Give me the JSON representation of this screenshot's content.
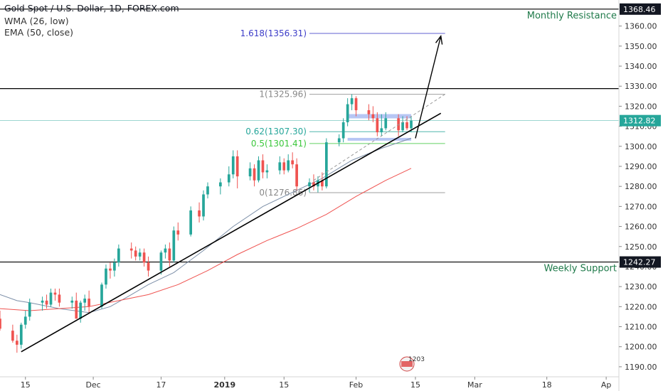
{
  "header": {
    "title": "Gold Spot / U.S. Dollar, 1D, FOREX.com",
    "indicators": [
      "WMA (26, low)",
      "EMA (50, close)"
    ]
  },
  "chart_data": {
    "type": "candlestick",
    "y_axis": {
      "ticks": [
        1190,
        1200,
        1210,
        1220,
        1230,
        1240,
        1250,
        1260,
        1270,
        1280,
        1290,
        1300,
        1310,
        1320,
        1330,
        1340,
        1350,
        1360
      ],
      "tick_labels": [
        "1190.00",
        "1200.00",
        "1210.00",
        "1220.00",
        "1230.00",
        "1240.00",
        "1250.00",
        "1260.00",
        "1270.00",
        "1280.00",
        "1290.00",
        "1300.00",
        "1310.00",
        "1320.00",
        "1330.00",
        "1340.00",
        "1350.00",
        "1360.00"
      ],
      "range": [
        1185,
        1373
      ]
    },
    "x_axis": {
      "labels": [
        {
          "date": "2018-11-15",
          "text": "15"
        },
        {
          "date": "2018-12-01",
          "text": "Dec"
        },
        {
          "date": "2018-12-17",
          "text": "17"
        },
        {
          "date": "2019-01-01",
          "text": "2019"
        },
        {
          "date": "2019-01-15",
          "text": "15"
        },
        {
          "date": "2019-02-01",
          "text": "Feb"
        },
        {
          "date": "2019-02-15",
          "text": "15"
        },
        {
          "date": "2019-03-01",
          "text": "Mar"
        },
        {
          "date": "2019-03-18",
          "text": "18"
        },
        {
          "date": "2019-04-01",
          "text": "Ap"
        }
      ],
      "range": [
        "2018-11-09",
        "2019-04-04"
      ]
    },
    "price_labels": [
      {
        "value": 1368.46,
        "text": "1368.46",
        "style": "dark"
      },
      {
        "value": 1312.82,
        "text": "1312.82",
        "style": "teal"
      },
      {
        "value": 1242.27,
        "text": "1242.27",
        "style": "dark"
      }
    ],
    "horizontal_levels": [
      {
        "value": 1368.46,
        "label": "Monthly Resistance",
        "color": "#000000"
      },
      {
        "value": 1328.8,
        "label": "",
        "color": "#000000"
      },
      {
        "value": 1242.27,
        "label": "Weekly Support",
        "color": "#000000"
      }
    ],
    "fibonacci": [
      {
        "ratio": "1.618",
        "value": 1356.31,
        "text": "1.618(1356.31)",
        "color": "#3c3cc8"
      },
      {
        "ratio": "1",
        "value": 1325.96,
        "text": "1(1325.96)",
        "color": "#888888"
      },
      {
        "ratio": "0.62",
        "value": 1307.3,
        "text": "0.62(1307.30)",
        "color": "#26a69a"
      },
      {
        "ratio": "0.5",
        "value": 1301.41,
        "text": "0.5(1301.41)",
        "color": "#3cc83c"
      },
      {
        "ratio": "0",
        "value": 1276.86,
        "text": "0(1276.86)",
        "color": "#888888"
      }
    ],
    "fib_range": {
      "from": "2019-01-21",
      "to": "2019-02-22"
    },
    "range_box": {
      "from": "2019-01-30",
      "to": "2019-02-14",
      "top": 1315,
      "bottom": 1303.5
    },
    "trendline": {
      "from": {
        "date": "2018-11-14",
        "value": 1197.5
      },
      "to": {
        "date": "2019-02-21",
        "value": 1316.5
      }
    },
    "dashed_line": {
      "from": {
        "date": "2019-01-22",
        "value": 1283
      },
      "to": {
        "date": "2019-02-22",
        "value": 1326
      }
    },
    "arrow": {
      "from": {
        "date": "2019-02-15",
        "value": 1304
      },
      "to": {
        "date": "2019-02-21",
        "value": 1355
      }
    },
    "current_price": 1312.82,
    "candles": [
      {
        "d": "2018-11-09",
        "o": 1214,
        "h": 1218,
        "l": 1208,
        "c": 1209
      },
      {
        "d": "2018-11-12",
        "o": 1208,
        "h": 1211,
        "l": 1202,
        "c": 1203
      },
      {
        "d": "2018-11-13",
        "o": 1203,
        "h": 1206,
        "l": 1197,
        "c": 1201
      },
      {
        "d": "2018-11-14",
        "o": 1201,
        "h": 1212,
        "l": 1199,
        "c": 1211
      },
      {
        "d": "2018-11-15",
        "o": 1211,
        "h": 1218,
        "l": 1209,
        "c": 1215
      },
      {
        "d": "2018-11-16",
        "o": 1215,
        "h": 1224,
        "l": 1213,
        "c": 1222
      },
      {
        "d": "2018-11-19",
        "o": 1222,
        "h": 1225,
        "l": 1218,
        "c": 1223
      },
      {
        "d": "2018-11-20",
        "o": 1223,
        "h": 1226,
        "l": 1219,
        "c": 1221
      },
      {
        "d": "2018-11-21",
        "o": 1221,
        "h": 1229,
        "l": 1220,
        "c": 1227
      },
      {
        "d": "2018-11-22",
        "o": 1227,
        "h": 1229,
        "l": 1223,
        "c": 1226
      },
      {
        "d": "2018-11-23",
        "o": 1226,
        "h": 1229,
        "l": 1220,
        "c": 1222
      },
      {
        "d": "2018-11-26",
        "o": 1222,
        "h": 1225,
        "l": 1219,
        "c": 1223
      },
      {
        "d": "2018-11-27",
        "o": 1223,
        "h": 1227,
        "l": 1214,
        "c": 1214
      },
      {
        "d": "2018-11-28",
        "o": 1214,
        "h": 1223,
        "l": 1212,
        "c": 1222
      },
      {
        "d": "2018-11-29",
        "o": 1222,
        "h": 1226,
        "l": 1218,
        "c": 1224
      },
      {
        "d": "2018-11-30",
        "o": 1224,
        "h": 1228,
        "l": 1217,
        "c": 1220
      },
      {
        "d": "2018-12-03",
        "o": 1220,
        "h": 1232,
        "l": 1219,
        "c": 1231
      },
      {
        "d": "2018-12-04",
        "o": 1231,
        "h": 1241,
        "l": 1229,
        "c": 1239
      },
      {
        "d": "2018-12-05",
        "o": 1239,
        "h": 1242,
        "l": 1234,
        "c": 1238
      },
      {
        "d": "2018-12-06",
        "o": 1238,
        "h": 1244,
        "l": 1235,
        "c": 1242
      },
      {
        "d": "2018-12-07",
        "o": 1242,
        "h": 1251,
        "l": 1240,
        "c": 1249
      },
      {
        "d": "2018-12-10",
        "o": 1249,
        "h": 1252,
        "l": 1244,
        "c": 1248
      },
      {
        "d": "2018-12-11",
        "o": 1248,
        "h": 1250,
        "l": 1243,
        "c": 1245
      },
      {
        "d": "2018-12-12",
        "o": 1245,
        "h": 1249,
        "l": 1243,
        "c": 1247
      },
      {
        "d": "2018-12-13",
        "o": 1247,
        "h": 1249,
        "l": 1240,
        "c": 1242
      },
      {
        "d": "2018-12-14",
        "o": 1242,
        "h": 1245,
        "l": 1235,
        "c": 1238
      },
      {
        "d": "2018-12-17",
        "o": 1238,
        "h": 1248,
        "l": 1236,
        "c": 1247
      },
      {
        "d": "2018-12-18",
        "o": 1247,
        "h": 1251,
        "l": 1244,
        "c": 1249
      },
      {
        "d": "2018-12-19",
        "o": 1249,
        "h": 1252,
        "l": 1240,
        "c": 1243
      },
      {
        "d": "2018-12-20",
        "o": 1243,
        "h": 1260,
        "l": 1242,
        "c": 1258
      },
      {
        "d": "2018-12-21",
        "o": 1258,
        "h": 1262,
        "l": 1253,
        "c": 1256
      },
      {
        "d": "2018-12-24",
        "o": 1256,
        "h": 1270,
        "l": 1255,
        "c": 1268
      },
      {
        "d": "2018-12-26",
        "o": 1268,
        "h": 1272,
        "l": 1262,
        "c": 1265
      },
      {
        "d": "2018-12-27",
        "o": 1265,
        "h": 1278,
        "l": 1263,
        "c": 1276
      },
      {
        "d": "2018-12-28",
        "o": 1276,
        "h": 1282,
        "l": 1274,
        "c": 1280
      },
      {
        "d": "2018-12-31",
        "o": 1280,
        "h": 1284,
        "l": 1276,
        "c": 1282
      },
      {
        "d": "2019-01-02",
        "o": 1282,
        "h": 1290,
        "l": 1280,
        "c": 1286
      },
      {
        "d": "2019-01-03",
        "o": 1286,
        "h": 1298,
        "l": 1284,
        "c": 1295
      },
      {
        "d": "2019-01-04",
        "o": 1295,
        "h": 1298,
        "l": 1279,
        "c": 1285
      },
      {
        "d": "2019-01-07",
        "o": 1285,
        "h": 1292,
        "l": 1283,
        "c": 1289
      },
      {
        "d": "2019-01-08",
        "o": 1289,
        "h": 1291,
        "l": 1280,
        "c": 1283
      },
      {
        "d": "2019-01-09",
        "o": 1283,
        "h": 1295,
        "l": 1282,
        "c": 1293
      },
      {
        "d": "2019-01-10",
        "o": 1293,
        "h": 1296,
        "l": 1284,
        "c": 1287
      },
      {
        "d": "2019-01-11",
        "o": 1287,
        "h": 1291,
        "l": 1284,
        "c": 1288
      },
      {
        "d": "2019-01-14",
        "o": 1288,
        "h": 1295,
        "l": 1286,
        "c": 1292
      },
      {
        "d": "2019-01-15",
        "o": 1292,
        "h": 1294,
        "l": 1286,
        "c": 1288
      },
      {
        "d": "2019-01-16",
        "o": 1288,
        "h": 1296,
        "l": 1287,
        "c": 1293
      },
      {
        "d": "2019-01-17",
        "o": 1293,
        "h": 1297,
        "l": 1289,
        "c": 1291
      },
      {
        "d": "2019-01-18",
        "o": 1291,
        "h": 1294,
        "l": 1278,
        "c": 1280
      },
      {
        "d": "2019-01-21",
        "o": 1280,
        "h": 1284,
        "l": 1277,
        "c": 1282
      },
      {
        "d": "2019-01-22",
        "o": 1282,
        "h": 1286,
        "l": 1278,
        "c": 1280
      },
      {
        "d": "2019-01-23",
        "o": 1280,
        "h": 1285,
        "l": 1277,
        "c": 1283
      },
      {
        "d": "2019-01-24",
        "o": 1283,
        "h": 1287,
        "l": 1278,
        "c": 1280
      },
      {
        "d": "2019-01-25",
        "o": 1280,
        "h": 1304,
        "l": 1279,
        "c": 1302
      },
      {
        "d": "2019-01-28",
        "o": 1302,
        "h": 1306,
        "l": 1300,
        "c": 1304
      },
      {
        "d": "2019-01-29",
        "o": 1304,
        "h": 1314,
        "l": 1302,
        "c": 1312
      },
      {
        "d": "2019-01-30",
        "o": 1312,
        "h": 1324,
        "l": 1310,
        "c": 1321
      },
      {
        "d": "2019-01-31",
        "o": 1321,
        "h": 1326,
        "l": 1318,
        "c": 1324
      },
      {
        "d": "2019-02-01",
        "o": 1324,
        "h": 1325,
        "l": 1315,
        "c": 1318
      },
      {
        "d": "2019-02-04",
        "o": 1318,
        "h": 1321,
        "l": 1313,
        "c": 1316
      },
      {
        "d": "2019-02-05",
        "o": 1316,
        "h": 1320,
        "l": 1312,
        "c": 1314
      },
      {
        "d": "2019-02-06",
        "o": 1314,
        "h": 1317,
        "l": 1305,
        "c": 1307
      },
      {
        "d": "2019-02-07",
        "o": 1307,
        "h": 1316,
        "l": 1305,
        "c": 1309
      },
      {
        "d": "2019-02-08",
        "o": 1309,
        "h": 1317,
        "l": 1308,
        "c": 1314
      },
      {
        "d": "2019-02-11",
        "o": 1314,
        "h": 1316,
        "l": 1305,
        "c": 1308
      },
      {
        "d": "2019-02-12",
        "o": 1308,
        "h": 1315,
        "l": 1307,
        "c": 1312
      },
      {
        "d": "2019-02-13",
        "o": 1312,
        "h": 1315,
        "l": 1308,
        "c": 1309
      },
      {
        "d": "2019-02-14",
        "o": 1309,
        "h": 1315,
        "l": 1307,
        "c": 1312.82
      }
    ],
    "wma_26_low": [
      {
        "d": "2018-11-09",
        "v": 1226
      },
      {
        "d": "2018-11-13",
        "v": 1223
      },
      {
        "d": "2018-11-16",
        "v": 1222
      },
      {
        "d": "2018-11-23",
        "v": 1219
      },
      {
        "d": "2018-11-30",
        "v": 1217
      },
      {
        "d": "2018-12-05",
        "v": 1220
      },
      {
        "d": "2018-12-10",
        "v": 1226
      },
      {
        "d": "2018-12-14",
        "v": 1231
      },
      {
        "d": "2018-12-20",
        "v": 1237
      },
      {
        "d": "2018-12-27",
        "v": 1248
      },
      {
        "d": "2019-01-03",
        "v": 1260
      },
      {
        "d": "2019-01-10",
        "v": 1270
      },
      {
        "d": "2019-01-17",
        "v": 1277
      },
      {
        "d": "2019-01-24",
        "v": 1284
      },
      {
        "d": "2019-01-31",
        "v": 1293
      },
      {
        "d": "2019-02-07",
        "v": 1299
      },
      {
        "d": "2019-02-14",
        "v": 1304
      }
    ],
    "ema_50_close": [
      {
        "d": "2018-11-09",
        "v": 1219
      },
      {
        "d": "2018-11-16",
        "v": 1218
      },
      {
        "d": "2018-11-23",
        "v": 1219
      },
      {
        "d": "2018-11-30",
        "v": 1220
      },
      {
        "d": "2018-12-07",
        "v": 1223
      },
      {
        "d": "2018-12-14",
        "v": 1226
      },
      {
        "d": "2018-12-21",
        "v": 1231
      },
      {
        "d": "2018-12-28",
        "v": 1238
      },
      {
        "d": "2019-01-04",
        "v": 1246
      },
      {
        "d": "2019-01-11",
        "v": 1253
      },
      {
        "d": "2019-01-18",
        "v": 1259
      },
      {
        "d": "2019-01-25",
        "v": 1266
      },
      {
        "d": "2019-02-01",
        "v": 1275
      },
      {
        "d": "2019-02-08",
        "v": 1283
      },
      {
        "d": "2019-02-14",
        "v": 1289
      }
    ],
    "colors": {
      "up": "#26a69a",
      "down": "#ef5350",
      "wma": "#7c8fa8",
      "ema": "#ef5350",
      "trend": "#000000",
      "box": "#9fb3f0"
    },
    "badge_text": "1203"
  }
}
